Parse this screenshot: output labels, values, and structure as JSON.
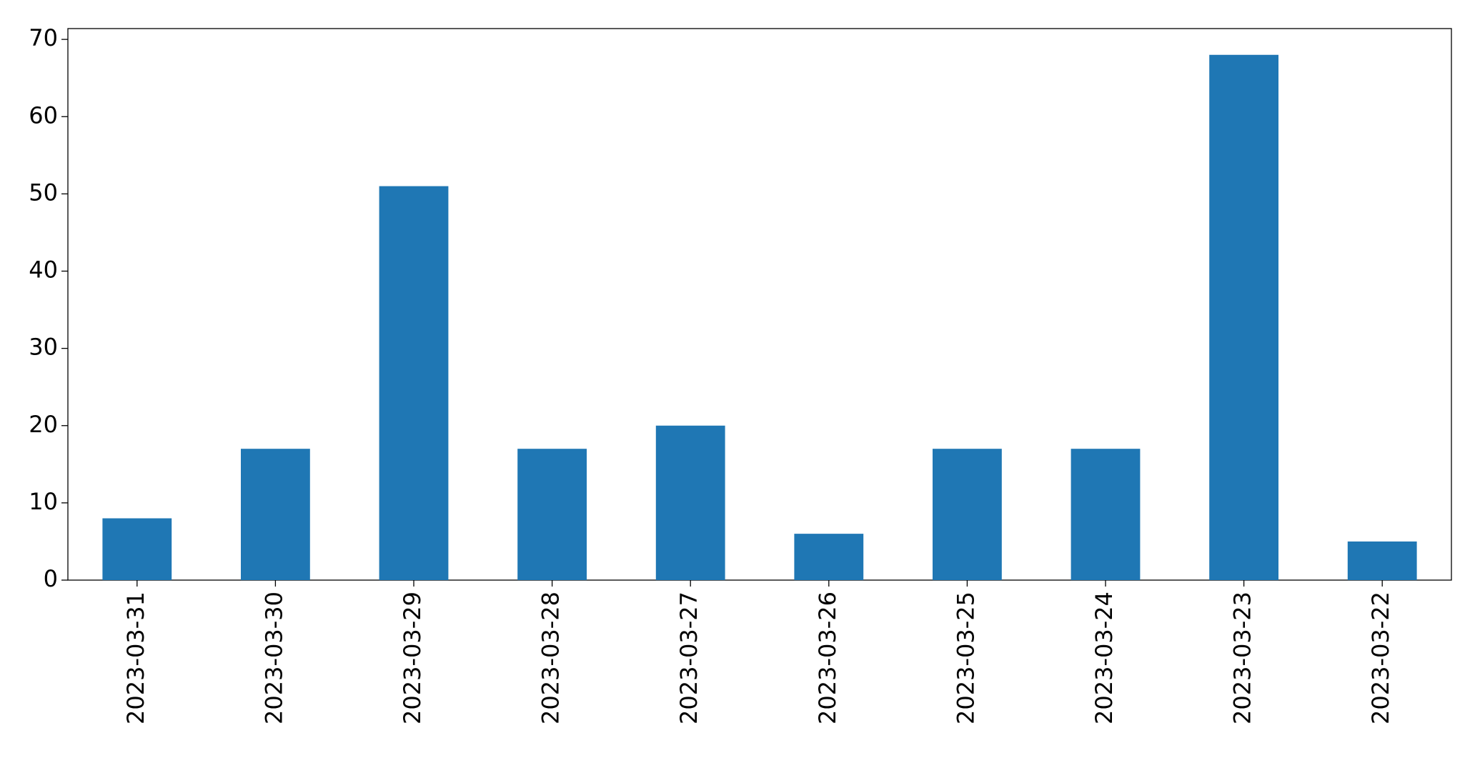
{
  "chart_data": {
    "type": "bar",
    "categories": [
      "2023-03-31",
      "2023-03-30",
      "2023-03-29",
      "2023-03-28",
      "2023-03-27",
      "2023-03-26",
      "2023-03-25",
      "2023-03-24",
      "2023-03-23",
      "2023-03-22"
    ],
    "values": [
      8,
      17,
      51,
      17,
      20,
      6,
      17,
      17,
      68,
      5
    ],
    "color": "#1f77b4",
    "ylim": [
      0,
      71.4
    ],
    "yticks": [
      0,
      10,
      20,
      30,
      40,
      50,
      60,
      70
    ],
    "grid": false
  }
}
